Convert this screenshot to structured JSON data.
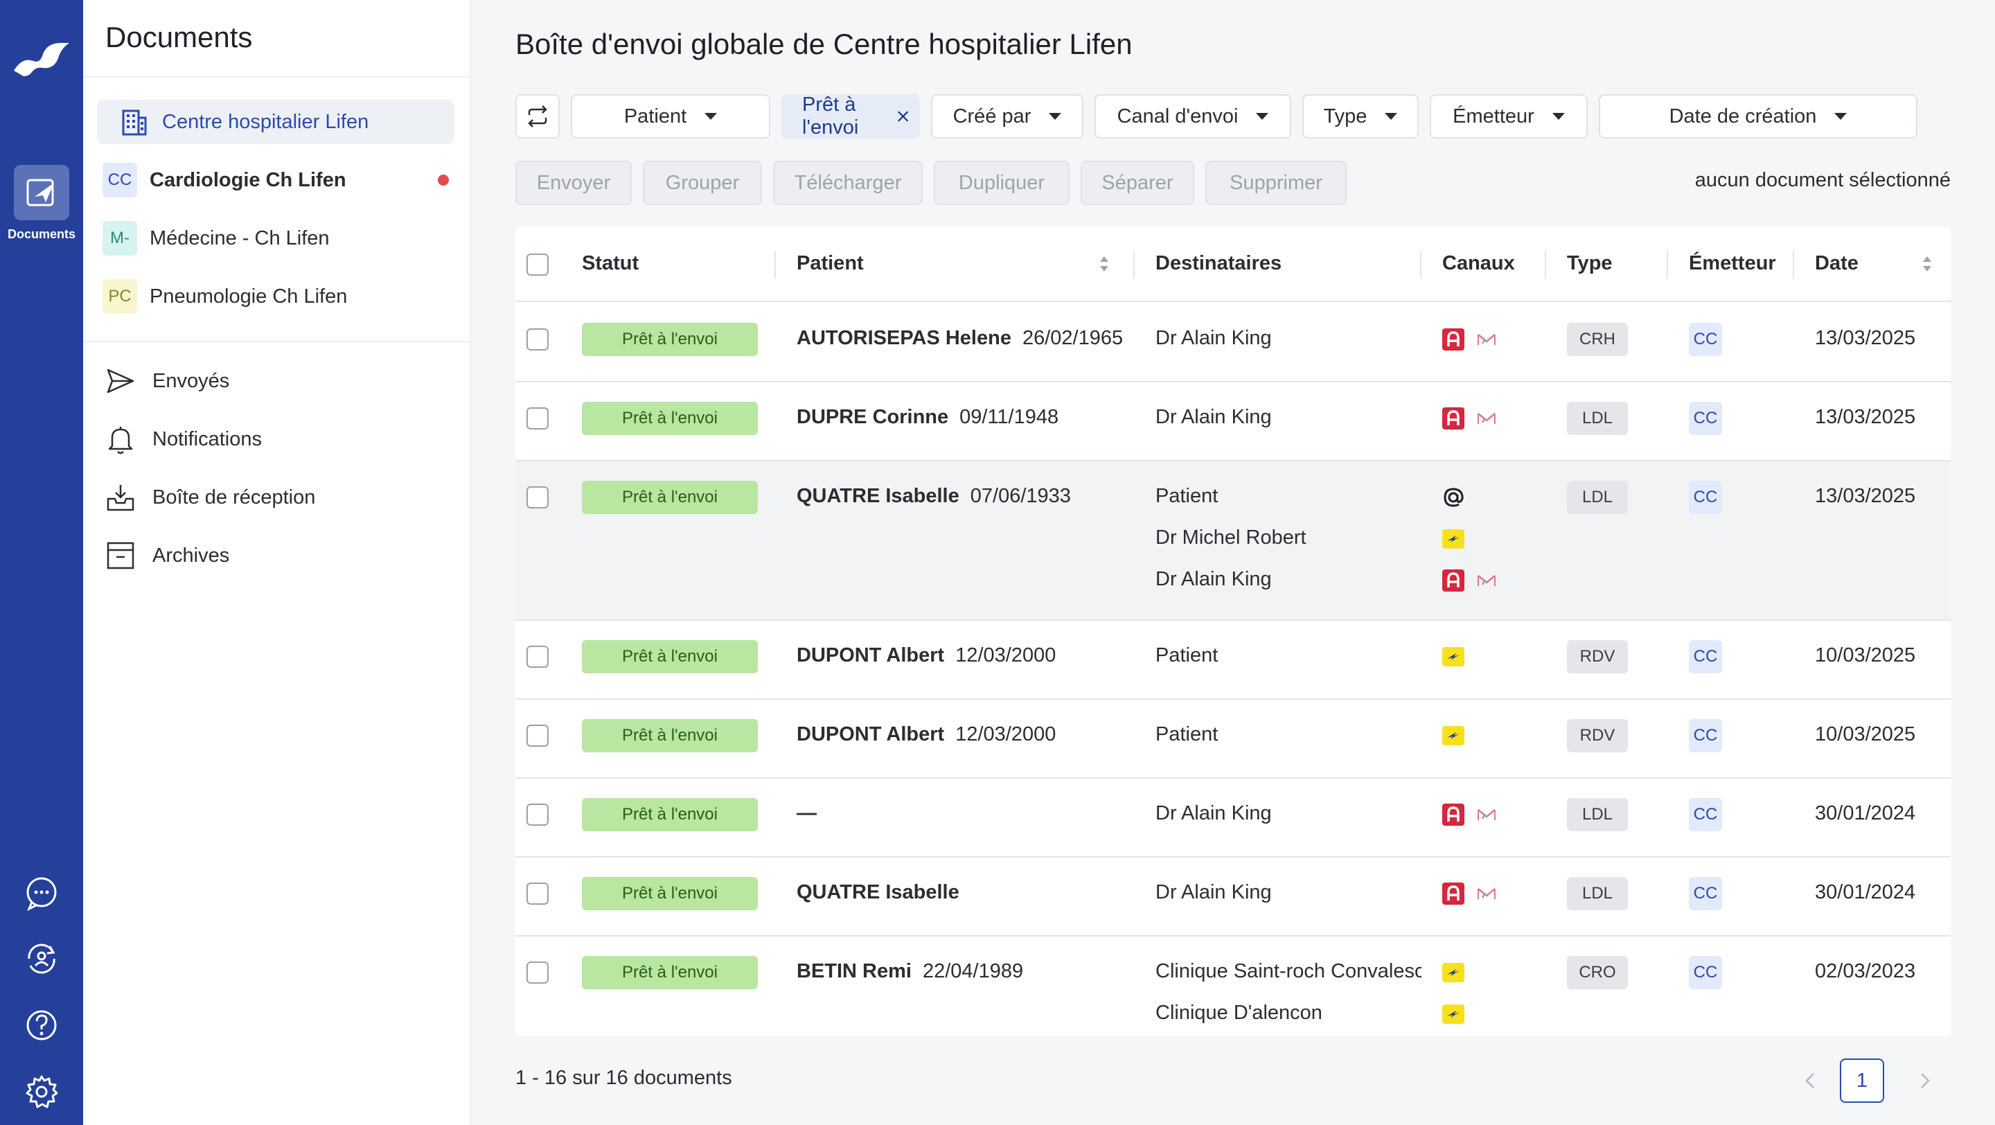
{
  "rail": {
    "documents_label": "Documents"
  },
  "sidebar": {
    "title": "Documents",
    "organization": "Centre hospitalier Lifen",
    "services": [
      {
        "badge": "CC",
        "label": "Cardiologie Ch Lifen",
        "badge_bg": "#e2eafb",
        "badge_fg": "#2a4bb0",
        "has_alert": true
      },
      {
        "badge": "M-",
        "label": "Médecine - Ch Lifen",
        "badge_bg": "#d6f3ef",
        "badge_fg": "#2d8a7f",
        "has_alert": false
      },
      {
        "badge": "PC",
        "label": "Pneumologie Ch Lifen",
        "badge_bg": "#f7f6cf",
        "badge_fg": "#8a8325",
        "has_alert": false
      }
    ],
    "links": [
      {
        "icon": "send-icon",
        "label": "Envoyés"
      },
      {
        "icon": "bell-icon",
        "label": "Notifications"
      },
      {
        "icon": "inbox-icon",
        "label": "Boîte de réception"
      },
      {
        "icon": "archive-icon",
        "label": "Archives"
      }
    ]
  },
  "main": {
    "title": "Boîte d'envoi globale de Centre hospitalier Lifen",
    "filters": {
      "patient": "Patient",
      "active_chip": "Prêt à l'envoi",
      "created_by": "Créé par",
      "channel": "Canal d'envoi",
      "type": "Type",
      "sender": "Émetteur",
      "created_date": "Date de création"
    },
    "actions": [
      "Envoyer",
      "Grouper",
      "Télécharger",
      "Dupliquer",
      "Séparer",
      "Supprimer"
    ],
    "selection_info": "aucun document sélectionné",
    "columns": {
      "status": "Statut",
      "patient": "Patient",
      "recipients": "Destinataires",
      "channels": "Canaux",
      "type": "Type",
      "sender": "Émetteur",
      "date": "Date"
    },
    "rows": [
      {
        "status": "Prêt à l'envoi",
        "patient": "AUTORISEPAS Helene",
        "dob": "26/02/1965",
        "recipients": [
          {
            "name": "Dr Alain King",
            "channels": [
              "dmp-icon",
              "mssante-icon"
            ]
          }
        ],
        "type": "CRH",
        "sender": "CC",
        "date": "13/03/2025"
      },
      {
        "status": "Prêt à l'envoi",
        "patient": "DUPRE Corinne",
        "dob": "09/11/1948",
        "recipients": [
          {
            "name": "Dr Alain King",
            "channels": [
              "dmp-icon",
              "mssante-icon"
            ]
          }
        ],
        "type": "LDL",
        "sender": "CC",
        "date": "13/03/2025"
      },
      {
        "status": "Prêt à l'envoi",
        "patient": "QUATRE Isabelle",
        "dob": "07/06/1933",
        "recipients": [
          {
            "name": "Patient",
            "channels": [
              "email-icon"
            ]
          },
          {
            "name": "Dr Michel Robert",
            "channels": [
              "laposte-icon"
            ]
          },
          {
            "name": "Dr Alain King",
            "channels": [
              "dmp-icon",
              "mssante-icon"
            ]
          }
        ],
        "type": "LDL",
        "sender": "CC",
        "date": "13/03/2025",
        "highlight": true
      },
      {
        "status": "Prêt à l'envoi",
        "patient": "DUPONT Albert",
        "dob": "12/03/2000",
        "recipients": [
          {
            "name": "Patient",
            "channels": [
              "laposte-icon"
            ]
          }
        ],
        "type": "RDV",
        "sender": "CC",
        "date": "10/03/2025"
      },
      {
        "status": "Prêt à l'envoi",
        "patient": "DUPONT Albert",
        "dob": "12/03/2000",
        "recipients": [
          {
            "name": "Patient",
            "channels": [
              "laposte-icon"
            ]
          }
        ],
        "type": "RDV",
        "sender": "CC",
        "date": "10/03/2025"
      },
      {
        "status": "Prêt à l'envoi",
        "patient": "—",
        "dob": "",
        "recipients": [
          {
            "name": "Dr Alain King",
            "channels": [
              "dmp-icon",
              "mssante-icon"
            ]
          }
        ],
        "type": "LDL",
        "sender": "CC",
        "date": "30/01/2024"
      },
      {
        "status": "Prêt à l'envoi",
        "patient": "QUATRE Isabelle",
        "dob": "",
        "recipients": [
          {
            "name": "Dr Alain King",
            "channels": [
              "dmp-icon",
              "mssante-icon"
            ]
          }
        ],
        "type": "LDL",
        "sender": "CC",
        "date": "30/01/2024"
      },
      {
        "status": "Prêt à l'envoi",
        "patient": "BETIN Remi",
        "dob": "22/04/1989",
        "recipients": [
          {
            "name": "Clinique Saint-roch Convalesc",
            "channels": [
              "laposte-icon"
            ]
          },
          {
            "name": "Clinique D'alencon",
            "channels": [
              "laposte-icon"
            ]
          }
        ],
        "type": "CRO",
        "sender": "CC",
        "date": "02/03/2023"
      }
    ],
    "footer": {
      "count": "1 - 16 sur 16 documents",
      "current_page": "1"
    }
  },
  "colors": {
    "rail": "#24409a",
    "accent": "#2a4bb0",
    "status_bg": "#b9e6a0"
  }
}
